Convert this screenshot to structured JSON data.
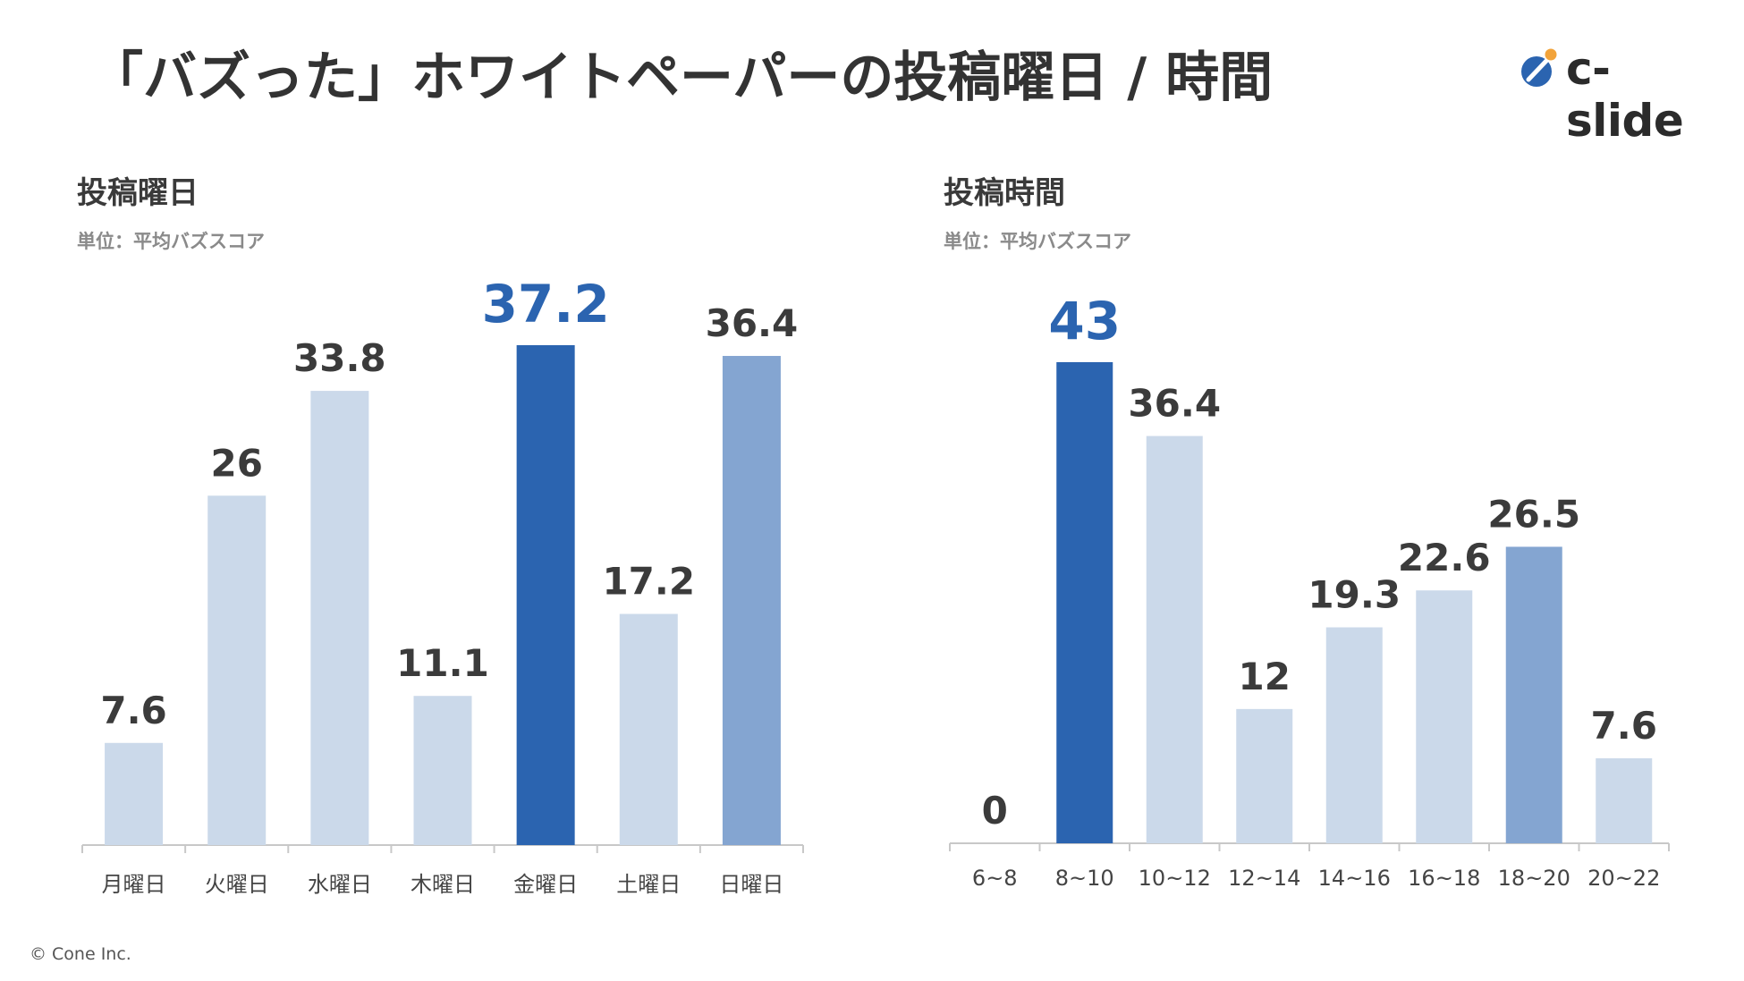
{
  "page": {
    "title": "「バズった」ホワイトペーパーの投稿曜日 / 時間",
    "logo_text": "c-slide",
    "copyright": "© Cone Inc."
  },
  "colors": {
    "light": "#cbd9ea",
    "medium": "#84a5d1",
    "dark": "#2b64b0",
    "label": "#3b3b3b",
    "highlight_label": "#2b64b0",
    "axis": "#c8c8c8",
    "tick_label": "#444444"
  },
  "chart_data": [
    {
      "type": "bar",
      "title": "投稿曜日",
      "unit_label": "単位：平均バズスコア",
      "categories": [
        "月曜日",
        "火曜日",
        "水曜日",
        "木曜日",
        "金曜日",
        "土曜日",
        "日曜日"
      ],
      "values": [
        7.6,
        26,
        33.8,
        11.1,
        37.2,
        17.2,
        36.4
      ],
      "value_labels": [
        "7.6",
        "26",
        "33.8",
        "11.1",
        "37.2",
        "17.2",
        "36.4"
      ],
      "bar_styles": [
        "light",
        "light",
        "light",
        "light",
        "dark",
        "light",
        "medium"
      ],
      "ylim": [
        0,
        37.2
      ],
      "grid": false,
      "xlabel": "",
      "ylabel": ""
    },
    {
      "type": "bar",
      "title": "投稿時間",
      "unit_label": "単位：平均バズスコア",
      "categories": [
        "6~8",
        "8~10",
        "10~12",
        "12~14",
        "14~16",
        "16~18",
        "18~20",
        "20~22"
      ],
      "values": [
        0,
        43,
        36.4,
        12,
        19.3,
        22.6,
        26.5,
        7.6
      ],
      "value_labels": [
        "0",
        "43",
        "36.4",
        "12",
        "19.3",
        "22.6",
        "26.5",
        "7.6"
      ],
      "bar_styles": [
        "light",
        "dark",
        "light",
        "light",
        "light",
        "light",
        "medium",
        "light"
      ],
      "ylim": [
        0,
        43
      ],
      "grid": false,
      "xlabel": "",
      "ylabel": ""
    }
  ]
}
